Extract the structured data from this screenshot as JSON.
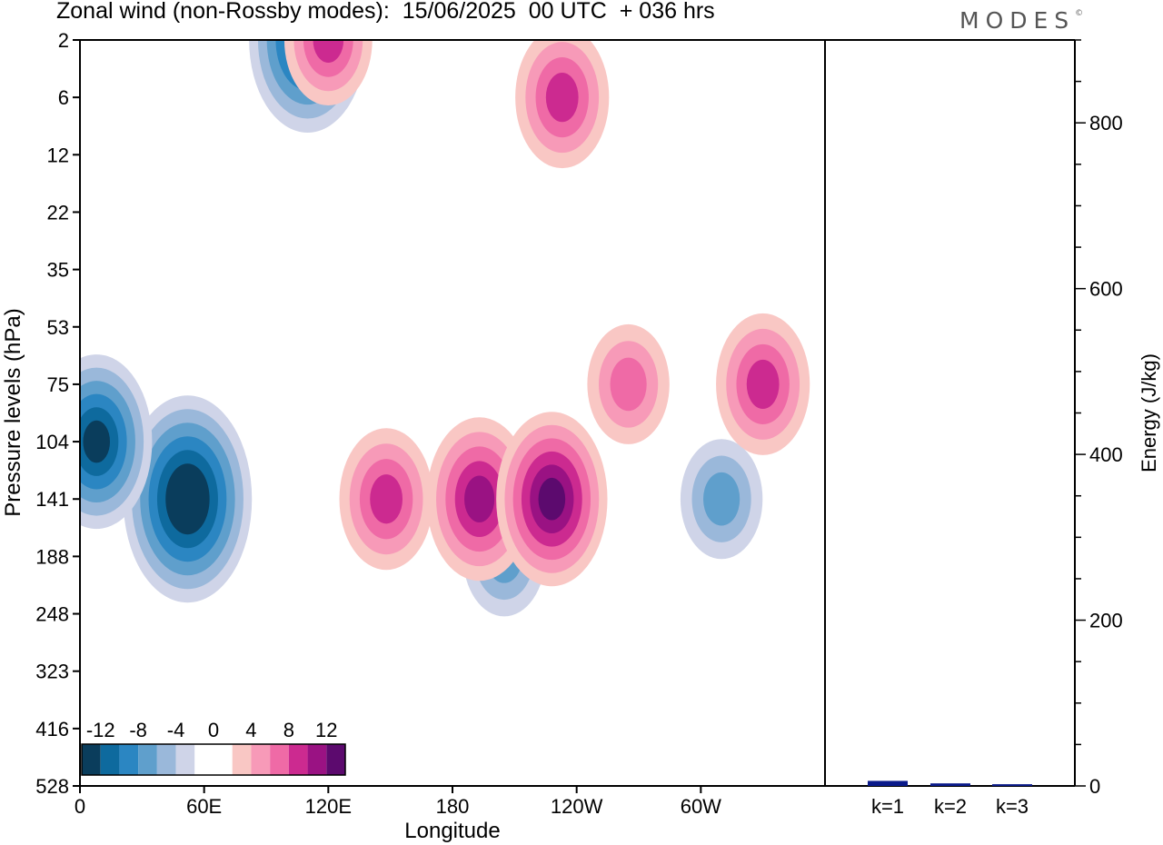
{
  "title": "Zonal wind (non-Rossby modes):  15/06/2025  00 UTC  + 036 hrs",
  "logo": "MODES",
  "chart_data": [
    {
      "type": "heatmap",
      "title": "Zonal wind (non-Rossby modes):  15/06/2025  00 UTC  + 036 hrs",
      "xlabel": "Longitude",
      "ylabel": "Pressure levels (hPa)",
      "x_ticks": [
        "0",
        "60E",
        "120E",
        "180",
        "120W",
        "60W"
      ],
      "y_ticks": [
        "2",
        "6",
        "12",
        "22",
        "35",
        "53",
        "75",
        "104",
        "141",
        "188",
        "248",
        "323",
        "416",
        "528"
      ],
      "colorbar": {
        "labels": [
          "-12",
          "-8",
          "-4",
          "0",
          "4",
          "8",
          "12"
        ],
        "colors": [
          "#0a3d5c",
          "#0e6a9e",
          "#2b86c2",
          "#5f9fcc",
          "#9ab8da",
          "#cfd4e8",
          "#ffffff",
          "#ffffff",
          "#f9c7c4",
          "#f79ab8",
          "#ef6aa6",
          "#cc2a90",
          "#9a1283",
          "#5c0a6e"
        ]
      },
      "features": [
        {
          "sign": "negative",
          "lon": 52,
          "level": "141",
          "magnitude": 14
        },
        {
          "sign": "negative",
          "lon": 8,
          "level": "104",
          "magnitude": 11
        },
        {
          "sign": "negative",
          "lon": 110,
          "level": "2",
          "magnitude": 12
        },
        {
          "sign": "negative",
          "lon": 205,
          "level": "188",
          "magnitude": 6
        },
        {
          "sign": "negative",
          "lon": 310,
          "level": "141",
          "magnitude": 6
        },
        {
          "sign": "positive",
          "lon": 193,
          "level": "141",
          "magnitude": 10
        },
        {
          "sign": "positive",
          "lon": 148,
          "level": "141",
          "magnitude": 8
        },
        {
          "sign": "positive",
          "lon": 228,
          "level": "141",
          "magnitude": 11
        },
        {
          "sign": "positive",
          "lon": 233,
          "level": "6",
          "magnitude": 8
        },
        {
          "sign": "positive",
          "lon": 330,
          "level": "75",
          "magnitude": 8
        },
        {
          "sign": "positive",
          "lon": 265,
          "level": "75",
          "magnitude": 6
        },
        {
          "sign": "positive",
          "lon": 120,
          "level": "2",
          "magnitude": 7
        }
      ]
    },
    {
      "type": "bar",
      "ylabel": "Energy (J/kg)",
      "categories": [
        "k=1",
        "k=2",
        "k=3"
      ],
      "values": [
        5,
        2,
        1
      ],
      "ylim": [
        0,
        900
      ],
      "y_ticks": [
        0,
        200,
        400,
        600,
        800
      ],
      "bar_color": "#0a1a8a"
    }
  ]
}
